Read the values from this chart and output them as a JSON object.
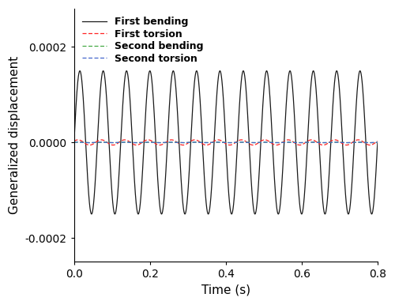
{
  "xlabel": "Time (s)",
  "ylabel": "Generalized displacement",
  "xlim": [
    0.0,
    0.8
  ],
  "ylim": [
    -0.00025,
    0.00028
  ],
  "yticks": [
    -0.0002,
    0.0,
    0.0002
  ],
  "xticks": [
    0.0,
    0.2,
    0.4,
    0.6,
    0.8
  ],
  "first_bending_amplitude": 0.00015,
  "first_bending_freq": 16.25,
  "first_torsion_amplitude": 5.5e-06,
  "first_torsion_freq": 16.25,
  "second_bending_amplitude": 5e-07,
  "second_bending_freq": 16.25,
  "second_torsion_amplitude": 5e-07,
  "second_torsion_freq": 16.25,
  "colors": {
    "first_bending": "#1a1a1a",
    "first_torsion": "#ff2222",
    "second_bending": "#44aa44",
    "second_torsion": "#4466cc"
  },
  "legend_labels": [
    "First bending",
    "First torsion",
    "Second bending",
    "Second torsion"
  ],
  "figsize": [
    5.0,
    3.86
  ],
  "dpi": 100
}
